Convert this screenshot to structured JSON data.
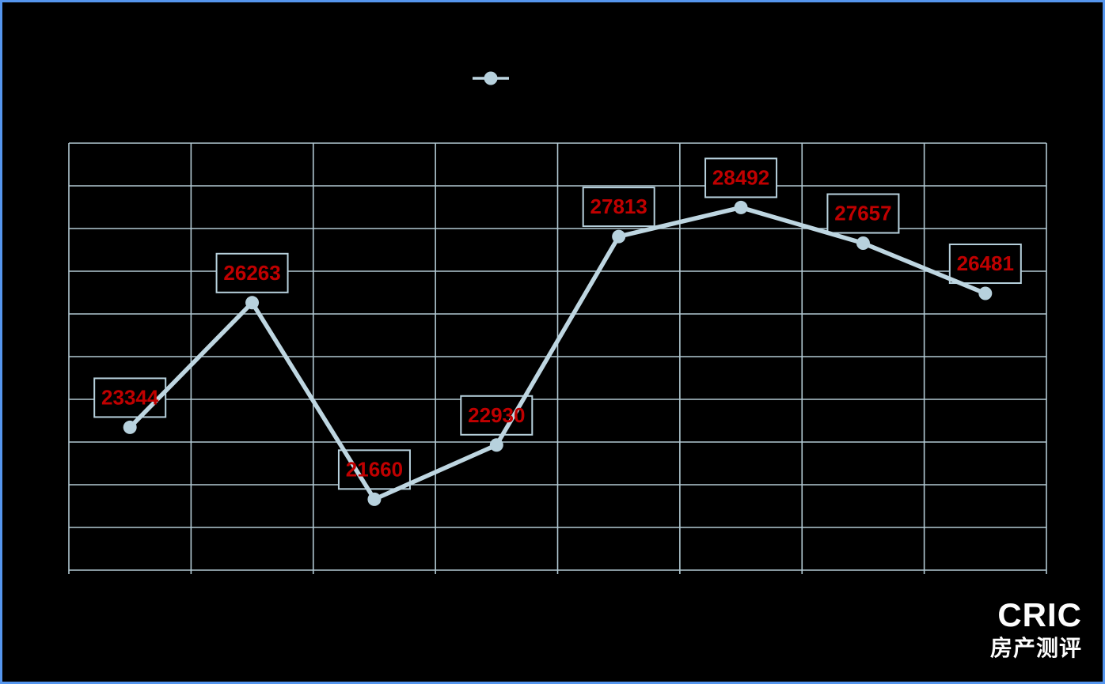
{
  "chart_data": {
    "type": "line",
    "categories": [
      "",
      "",
      "",
      "",
      "",
      "",
      "",
      ""
    ],
    "series": [
      {
        "values": [
          23344,
          26263,
          21660,
          22930,
          27813,
          28492,
          27657,
          26481
        ]
      }
    ],
    "ylim": [
      20000,
      30000
    ],
    "y_grid_step": 1000,
    "x_columns": 8,
    "grid": "on",
    "legend_position": "top-center",
    "axis_tick_labels_visible": false,
    "data_labels_visible": true,
    "colors": {
      "series_line": "#bed6e1",
      "marker_fill": "#b7d1dd",
      "gridline": "#b2c9d3",
      "data_label_text": "#c00000",
      "data_label_box_border": "#b7d1dd",
      "background": "#000000",
      "frame_border": "#5596ee"
    }
  },
  "branding": {
    "logo_text": "CRIC",
    "logo_subtext": "房产测评"
  }
}
